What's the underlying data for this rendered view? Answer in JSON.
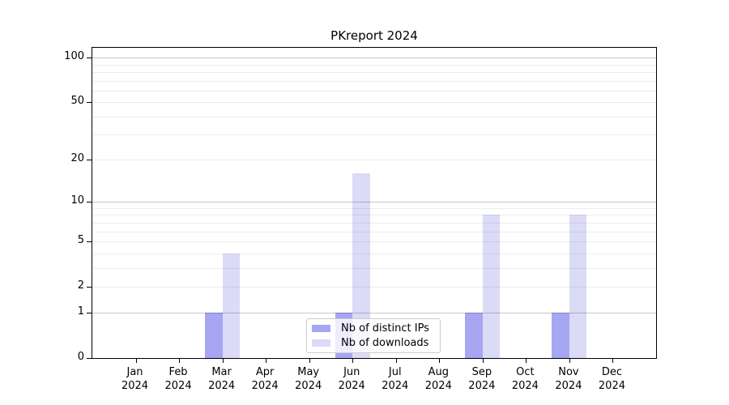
{
  "figure_title": "PKreport 2024",
  "chart_data": {
    "type": "bar",
    "title": "PKreport 2024",
    "categories": [
      "Jan",
      "Feb",
      "Mar",
      "Apr",
      "May",
      "Jun",
      "Jul",
      "Aug",
      "Sep",
      "Oct",
      "Nov",
      "Dec"
    ],
    "category_year": "2024",
    "series": [
      {
        "name": "Nb of distinct IPs",
        "color": "#a6a6f2",
        "values": [
          0,
          0,
          1,
          0,
          0,
          1,
          0,
          0,
          1,
          0,
          1,
          0
        ]
      },
      {
        "name": "Nb of downloads",
        "color": "#dbdbf7",
        "values": [
          0,
          0,
          4,
          0,
          0,
          16,
          0,
          0,
          8,
          0,
          8,
          0
        ]
      }
    ],
    "xlabel": "",
    "ylabel": "",
    "y_scale": "log10(1+y)",
    "ylim": [
      0,
      116.6
    ],
    "y_ticks": [
      0,
      1,
      2,
      5,
      10,
      20,
      50,
      100
    ],
    "grid_major_y": [
      1,
      10,
      100
    ],
    "grid_minor_y": [
      2,
      3,
      4,
      5,
      6,
      7,
      8,
      9,
      20,
      30,
      40,
      50,
      60,
      70,
      80,
      90
    ],
    "legend": {
      "position": "lower center",
      "entries": [
        "Nb of distinct IPs",
        "Nb of downloads"
      ]
    }
  },
  "colors": {
    "distinct_ips_bar": "#a6a6f2",
    "downloads_bar": "#dbdbf7",
    "grid_major": "#c6c6c6",
    "grid_minor": "#ececec",
    "axis_spine": "#000000",
    "legend_border": "#cccccc"
  }
}
